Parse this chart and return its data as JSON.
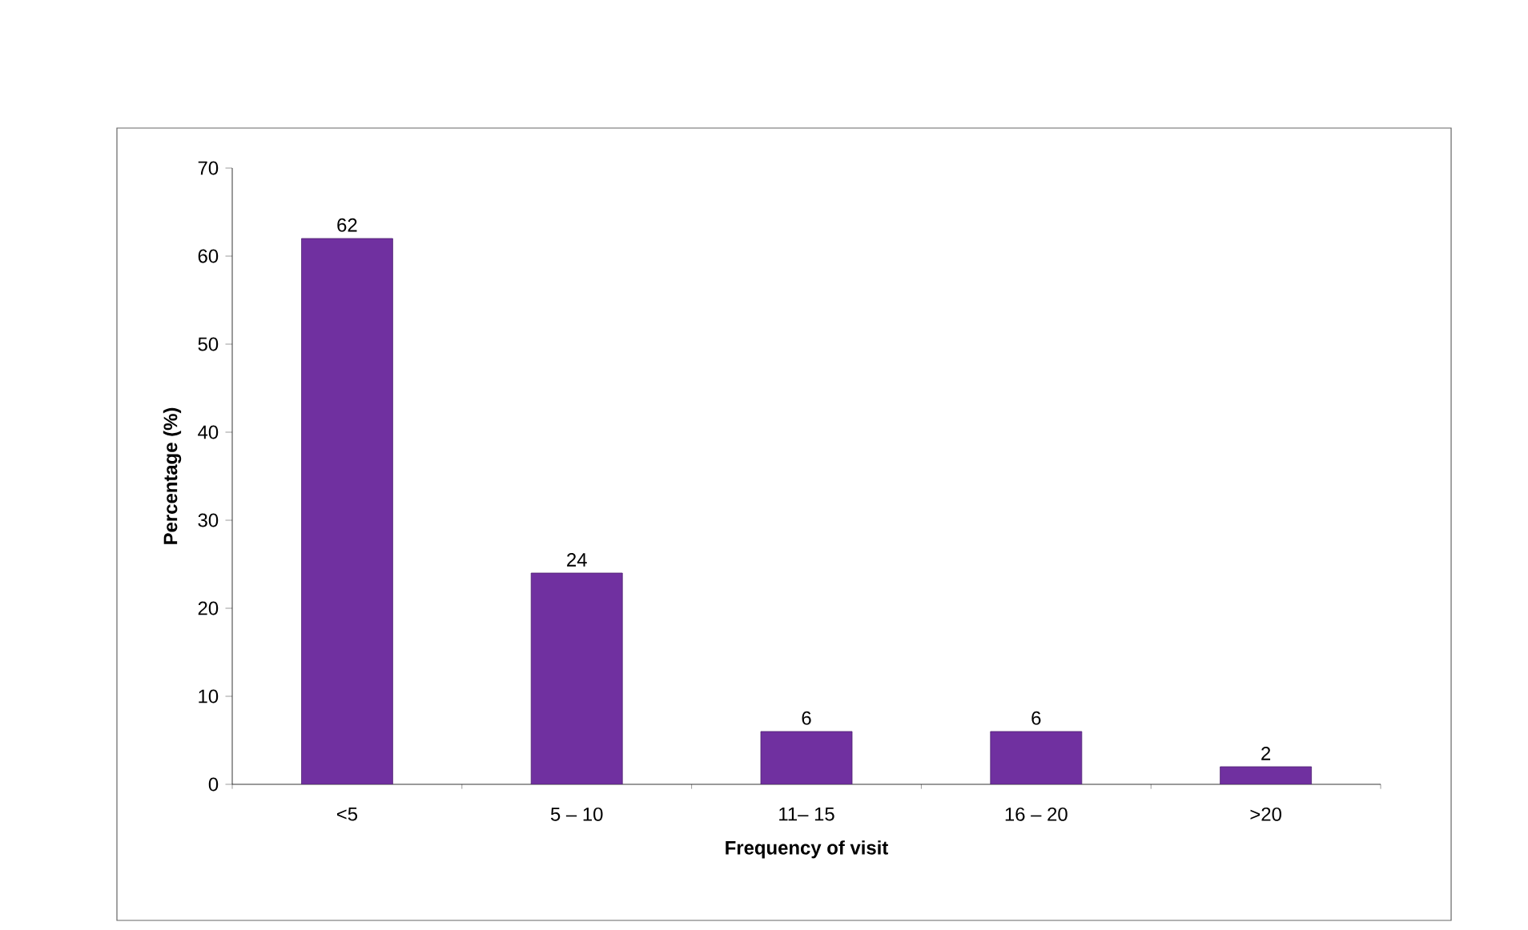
{
  "chart_data": {
    "type": "bar",
    "xlabel": "Frequency of visit",
    "ylabel": "Percentage (%)",
    "categories": [
      "<5",
      "5 – 10",
      "11– 15",
      "16 – 20",
      ">20"
    ],
    "values": [
      62,
      24,
      6,
      6,
      2
    ],
    "color": "#7030a0",
    "ylim": [
      0,
      70
    ],
    "yticks": [
      0,
      10,
      20,
      30,
      40,
      50,
      60,
      70
    ],
    "data_labels": true,
    "grid": false
  }
}
